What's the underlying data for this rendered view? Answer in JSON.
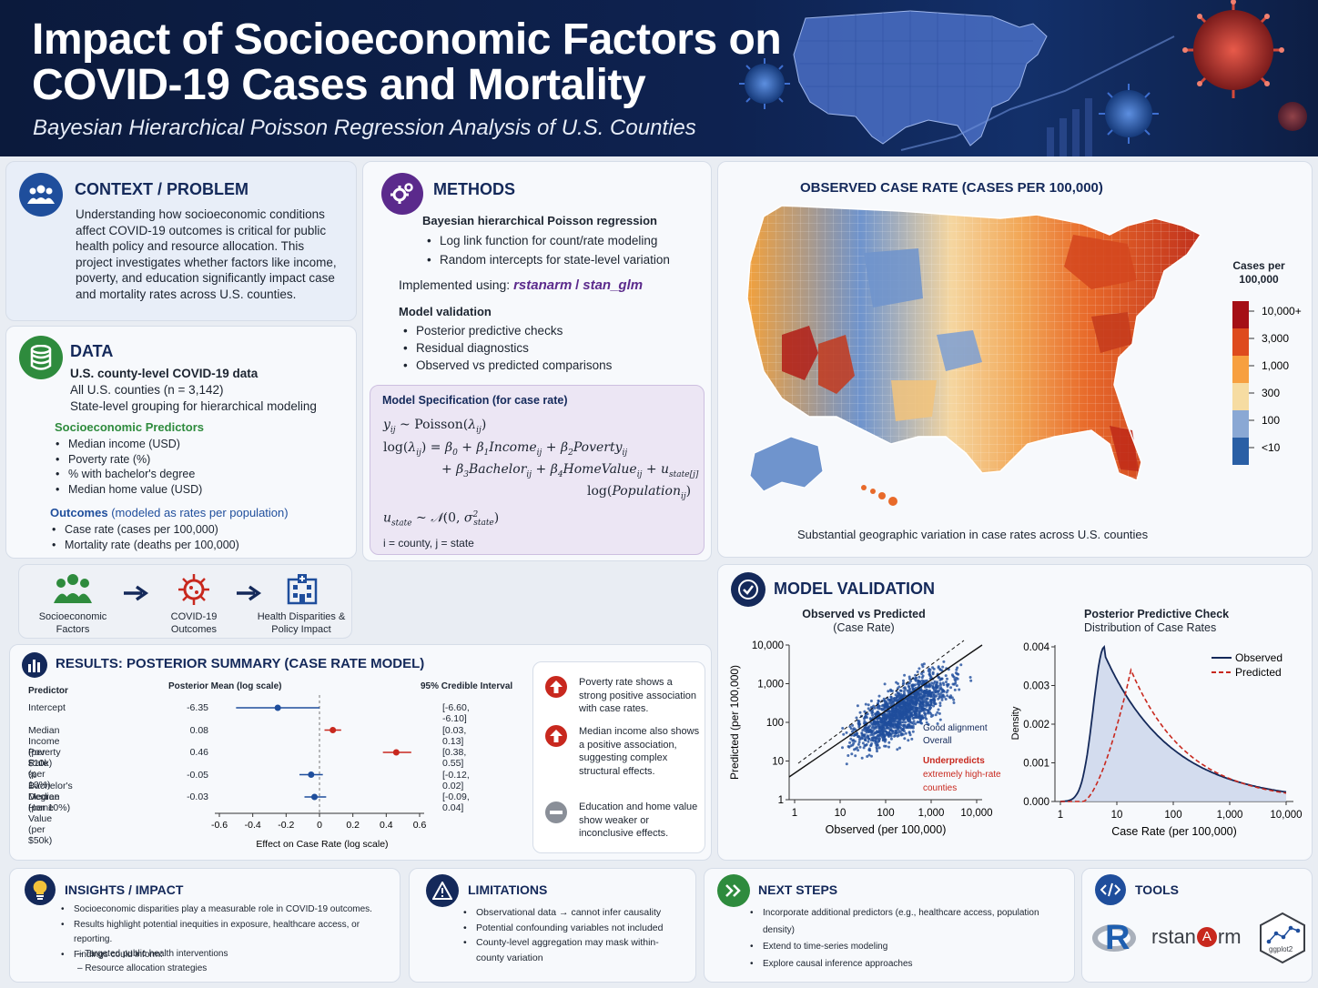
{
  "header": {
    "title_line1": "Impact of Socioeconomic Factors on",
    "title_line2": "COVID-19 Cases and Mortality",
    "subtitle": "Bayesian Hierarchical Poisson Regression Analysis of U.S. Counties"
  },
  "context": {
    "title": "CONTEXT / PROBLEM",
    "text": "Understanding how socioeconomic conditions affect COVID-19 outcomes is critical for public health policy and resource allocation. This project investigates whether factors like income, poverty, and education significantly impact case and mortality rates across U.S. counties."
  },
  "data": {
    "title": "DATA",
    "heading": "U.S. county-level COVID-19 data",
    "line1": "All U.S. counties (n = 3,142)",
    "line2": "State-level grouping for hierarchical modeling",
    "predictors_title": "Socioeconomic Predictors",
    "predictors": [
      "Median income (USD)",
      "Poverty rate (%)",
      "% with bachelor's degree",
      "Median home value (USD)"
    ],
    "outcomes_title": "Outcomes",
    "outcomes_suffix": "(modeled as rates per population)",
    "outcomes": [
      "Case rate (cases per 100,000)",
      "Mortality rate (deaths per 100,000)"
    ]
  },
  "flow": {
    "step1": "Socioeconomic Factors",
    "step2": "COVID-19 Outcomes",
    "step3": "Health Disparities & Policy Impact"
  },
  "methods": {
    "title": "METHODS",
    "heading": "Bayesian hierarchical Poisson regression",
    "bullets": [
      "Log link function for count/rate modeling",
      "Random intercepts for state-level variation"
    ],
    "implemented_label": "Implemented using:",
    "pkg1": "rstanarm",
    "sep": "/",
    "pkg2": "stan_glm",
    "validation_title": "Model validation",
    "validation": [
      "Posterior predictive checks",
      "Residual diagnostics",
      "Observed vs predicted comparisons"
    ],
    "spec_title": "Model Specification (for case rate)",
    "spec_footer": "i = county,    j = state"
  },
  "map": {
    "title": "OBSERVED CASE RATE (CASES PER 100,000)",
    "legend_title": "Cases per 100,000",
    "legend_labels": [
      "10,000+",
      "3,000",
      "1,000",
      "300",
      "100",
      "<10"
    ],
    "legend_colors": [
      "#a50f15",
      "#de4b1e",
      "#f7a040",
      "#f6dca2",
      "#8aa8d4",
      "#2a5fa5"
    ],
    "caption": "Substantial geographic variation in case rates across U.S. counties"
  },
  "validation": {
    "title": "MODEL VALIDATION",
    "scatter": {
      "title": "Observed vs Predicted",
      "subtitle": "(Case Rate)",
      "ylabel": "Predicted (per 100,000)",
      "xlabel": "Observed (per 100,000)",
      "yticks": [
        "10,000",
        "1,000",
        "100",
        "10",
        "1"
      ],
      "xticks": [
        "1",
        "10",
        "100",
        "1,000",
        "10,000"
      ],
      "note1a": "Good alignment",
      "note1b": "Overall",
      "note2a": "Underpredicts",
      "note2b": "extremely high-rate",
      "note2c": "counties"
    },
    "ppc": {
      "title": "Posterior Predictive Check",
      "subtitle": "Distribution of Case Rates",
      "ylabel": "Density",
      "xlabel": "Case Rate (per 100,000)",
      "yticks": [
        "0.004",
        "0.003",
        "0.002",
        "0.001",
        "0.000"
      ],
      "xticks": [
        "1",
        "10",
        "100",
        "1,000",
        "10,000"
      ],
      "legend_observed": "Observed",
      "legend_predicted": "Predicted"
    }
  },
  "results": {
    "title": "RESULTS: POSTERIOR SUMMARY (CASE RATE MODEL)",
    "col_predictor": "Predictor",
    "col_mean": "Posterior Mean (log scale)",
    "col_ci": "95% Credible Interval",
    "xlabel": "Effect on Case Rate (log scale)",
    "xticks": [
      "-0.6",
      "-0.4",
      "-0.2",
      "0",
      "0.2",
      "0.4",
      "0.6"
    ],
    "rows": [
      {
        "name": "Intercept",
        "mean": "-6.35",
        "ci": "[-6.60, -6.10]"
      },
      {
        "name": "Median Income (per $10k)",
        "mean": "0.08",
        "ci": "[0.03, 0.13]"
      },
      {
        "name": "Poverty Rate (per 10%)",
        "mean": "0.46",
        "ci": "[0.38, 0.55]"
      },
      {
        "name": "% Bachelor's Degree (per 10%)",
        "mean": "-0.05",
        "ci": "[-0.12, 0.02]"
      },
      {
        "name": "Median Home Value (per $50k)",
        "mean": "-0.03",
        "ci": "[-0.09, 0.04]"
      }
    ],
    "notes": [
      "Poverty rate shows a strong positive association with case rates.",
      "Median income also shows a positive association, suggesting complex structural effects.",
      "Education and home value show weaker or inconclusive effects."
    ]
  },
  "insights": {
    "title": "INSIGHTS / IMPACT",
    "bullets": [
      "Socioeconomic disparities play a measurable role in COVID-19 outcomes.",
      "Results highlight potential inequities in exposure, healthcare access, or reporting.",
      "Findings could inform:"
    ],
    "sub": [
      "Targeted public health interventions",
      "Resource allocation strategies"
    ]
  },
  "limitations": {
    "title": "LIMITATIONS",
    "bullets": [
      "Observational data → cannot infer causality",
      "Potential confounding variables not included",
      "County-level aggregation may mask within-county variation"
    ]
  },
  "next_steps": {
    "title": "NEXT STEPS",
    "bullets": [
      "Incorporate additional predictors (e.g., healthcare access, population density)",
      "Extend to time-series modeling",
      "Explore causal inference approaches"
    ]
  },
  "tools": {
    "title": "TOOLS",
    "r_logo": "R",
    "rstanarm_prefix": "rstan",
    "rstanarm_suffix": "rm",
    "ggplot": "ggplot2"
  },
  "colors": {
    "navy": "#14295a",
    "red": "#c8281e",
    "blue": "#1f4e9c",
    "green": "#2e8b3d",
    "purple": "#5b2a8c"
  }
}
